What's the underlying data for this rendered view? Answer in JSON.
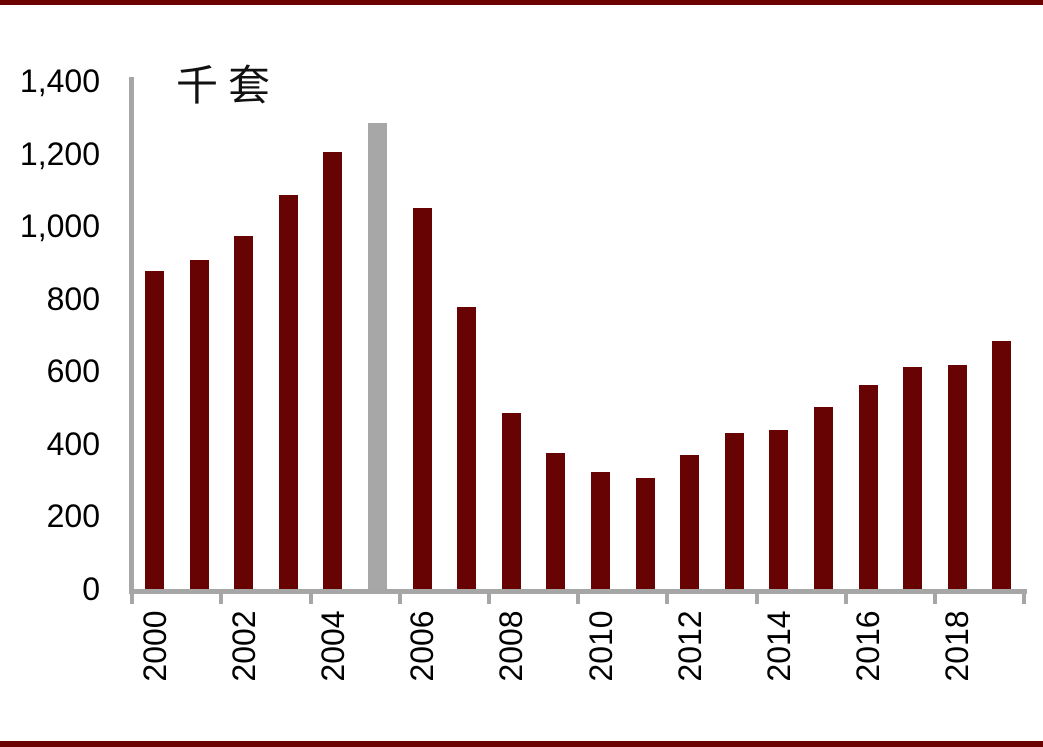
{
  "page": {
    "top_rule_color": "#6a0302",
    "bottom_rule_color": "#6a0302",
    "background_color": "#ffffff"
  },
  "chart_data": {
    "type": "bar",
    "title": "",
    "unit_label": "千套",
    "categories": [
      2000,
      2001,
      2002,
      2003,
      2004,
      2005,
      2006,
      2007,
      2008,
      2009,
      2010,
      2011,
      2012,
      2013,
      2014,
      2015,
      2016,
      2017,
      2018,
      2019
    ],
    "values": [
      877,
      908,
      973,
      1086,
      1203,
      1283,
      1051,
      776,
      485,
      375,
      323,
      306,
      368,
      429,
      437,
      501,
      561,
      613,
      617,
      683
    ],
    "bar_color": "#670302",
    "highlight_index": 5,
    "highlight_color": "#a7a7a7",
    "axis_color": "#a6a6a6",
    "text_color": "#000000",
    "ylim": [
      0,
      1400
    ],
    "ytick_step": 200,
    "yticks": [
      0,
      200,
      400,
      600,
      800,
      1000,
      1200,
      1400
    ],
    "ytick_labels": [
      "0",
      "200",
      "400",
      "600",
      "800",
      "1,000",
      "1,200",
      "1,400"
    ],
    "xticks_shown": [
      2000,
      2002,
      2004,
      2006,
      2008,
      2010,
      2012,
      2014,
      2016,
      2018
    ],
    "xtick_labels": [
      "2000",
      "2002",
      "2004",
      "2006",
      "2008",
      "2010",
      "2012",
      "2014",
      "2016",
      "2018"
    ],
    "grid": false,
    "legend": "none"
  }
}
